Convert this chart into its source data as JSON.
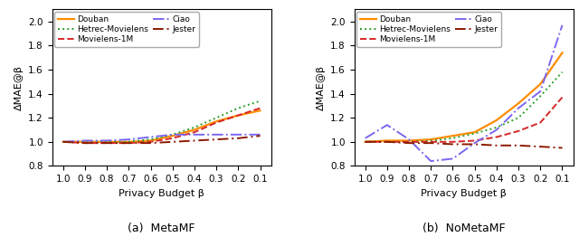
{
  "x": [
    1.0,
    0.9,
    0.8,
    0.7,
    0.6,
    0.5,
    0.4,
    0.3,
    0.2,
    0.1
  ],
  "metamf": {
    "douban": [
      1.0,
      1.0,
      1.0,
      1.0,
      1.01,
      1.05,
      1.1,
      1.17,
      1.22,
      1.26
    ],
    "hetrec": [
      1.0,
      1.0,
      1.0,
      1.0,
      1.02,
      1.06,
      1.12,
      1.2,
      1.28,
      1.34
    ],
    "movielens": [
      1.0,
      0.99,
      0.99,
      0.99,
      1.0,
      1.03,
      1.08,
      1.16,
      1.22,
      1.28
    ],
    "ciao": [
      1.0,
      1.01,
      1.01,
      1.02,
      1.04,
      1.06,
      1.06,
      1.06,
      1.06,
      1.06
    ],
    "jester": [
      1.0,
      0.99,
      0.99,
      0.99,
      0.99,
      1.0,
      1.01,
      1.02,
      1.03,
      1.05
    ]
  },
  "nometamf": {
    "douban": [
      1.0,
      1.01,
      1.01,
      1.02,
      1.05,
      1.08,
      1.18,
      1.32,
      1.48,
      1.74
    ],
    "hetrec": [
      1.0,
      1.0,
      1.0,
      1.01,
      1.03,
      1.07,
      1.12,
      1.2,
      1.38,
      1.58
    ],
    "movielens": [
      1.0,
      1.0,
      1.0,
      1.0,
      1.0,
      1.01,
      1.04,
      1.09,
      1.16,
      1.37
    ],
    "ciao": [
      1.03,
      1.14,
      1.02,
      0.84,
      0.86,
      0.99,
      1.1,
      1.28,
      1.42,
      1.97
    ],
    "jester": [
      1.0,
      1.0,
      0.99,
      0.99,
      0.98,
      0.98,
      0.97,
      0.97,
      0.96,
      0.95
    ]
  },
  "colors": {
    "douban": "#ff8c00",
    "hetrec": "#2ca02c",
    "movielens": "#d62728",
    "ciao": "#7b68ee",
    "jester": "#8b1a00"
  },
  "labels": {
    "douban": "Douban",
    "hetrec": "Hetrec-Movielens",
    "movielens": "Movielens-1M",
    "ciao": "Ciao",
    "jester": "Jester"
  },
  "ylabel": "ΔMAE@β",
  "xlabel": "Privacy Budget β",
  "ylim": [
    0.8,
    2.1
  ],
  "yticks": [
    0.8,
    1.0,
    1.2,
    1.4,
    1.6,
    1.8,
    2.0
  ],
  "xticks": [
    1.0,
    0.9,
    0.8,
    0.7,
    0.6,
    0.5,
    0.4,
    0.3,
    0.2,
    0.1
  ],
  "subtitle_a": "(a)  MetaMF",
  "subtitle_b": "(b)  NoMetaMF"
}
